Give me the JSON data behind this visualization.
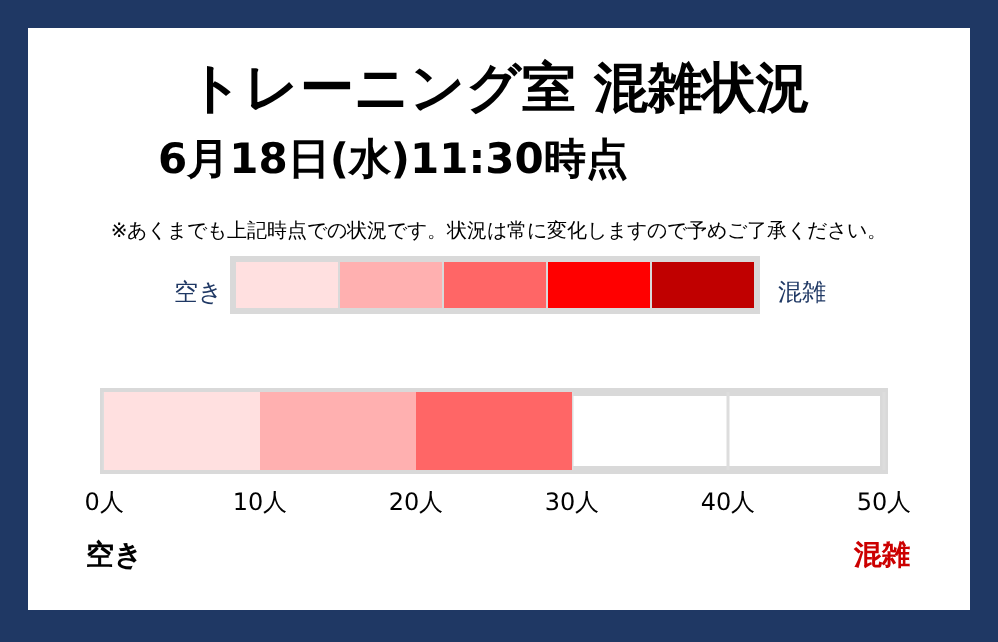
{
  "chart_data": {
    "type": "bar",
    "orientation": "horizontal",
    "stacked": true,
    "title": "トレーニング室 混雑状況",
    "subtitle": "6月18日(水)11:30時点",
    "annotations": [
      "※あくまでも上記時点での状況です。状況は常に変化しますので予めご了承ください。",
      "空き",
      "混雑",
      "空き",
      "混雑"
    ],
    "categories": [
      null
    ],
    "series": [
      {
        "color": "#ffe0e0",
        "values": [
          10
        ]
      },
      {
        "color": "#ffb0b0",
        "values": [
          10
        ]
      },
      {
        "color": "#ff6666",
        "values": [
          10
        ]
      }
    ],
    "xlim": [
      0,
      50
    ],
    "xticks": [
      {
        "value": 0,
        "label": "0人"
      },
      {
        "value": 10,
        "label": "10人"
      },
      {
        "value": 20,
        "label": "20人"
      },
      {
        "value": 30,
        "label": "30人"
      },
      {
        "value": 40,
        "label": "40人"
      },
      {
        "value": 50,
        "label": "50人"
      }
    ],
    "grid": "x"
  }
}
